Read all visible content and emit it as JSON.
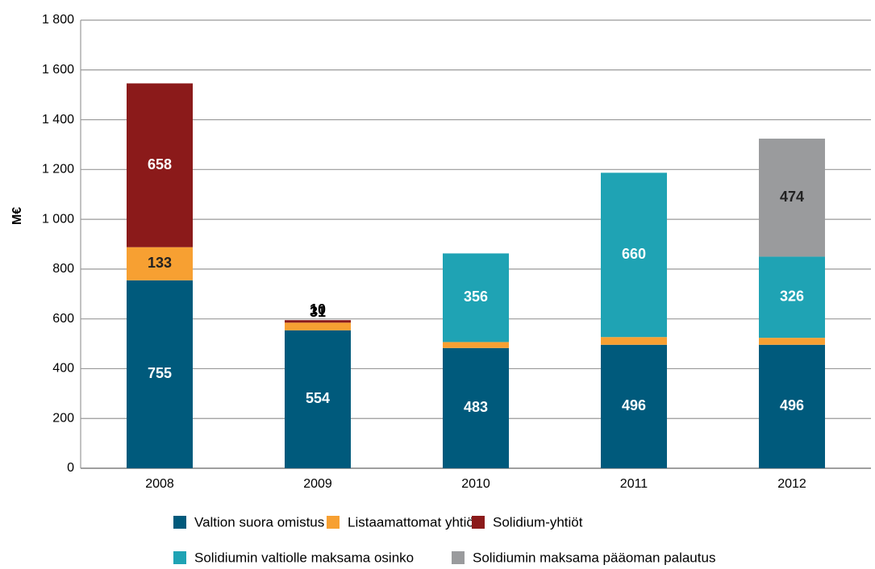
{
  "chart_data": {
    "type": "stacked_bar",
    "y_label": "M€",
    "categories": [
      "2008",
      "2009",
      "2010",
      "2011",
      "2012"
    ],
    "series": [
      {
        "name": "Valtion suora omistus",
        "color": "#005a7c",
        "values": [
          755,
          554,
          483,
          496,
          496
        ]
      },
      {
        "name": "Listaamattomat yhtiöt",
        "color": "#f7a032",
        "values": [
          133,
          31,
          24,
          31,
          28
        ]
      },
      {
        "name": "Solidium-yhtiöt",
        "color": "#8b1a1a",
        "values": [
          658,
          10,
          null,
          null,
          null
        ]
      },
      {
        "name": "Solidiumin valtiolle maksama osinko",
        "color": "#1fa3b4",
        "values": [
          null,
          null,
          356,
          660,
          326
        ]
      },
      {
        "name": "Solidiumin maksama pääoman palautus",
        "color": "#9a9b9d",
        "values": [
          null,
          null,
          null,
          null,
          474
        ]
      }
    ],
    "ylim": [
      0,
      1800
    ],
    "yticks": [
      0,
      200,
      400,
      600,
      800,
      {
        "value": 1000,
        "label": "1 000"
      },
      {
        "value": 1200,
        "label": "1 200"
      },
      {
        "value": 1400,
        "label": "1 400"
      },
      {
        "value": 1600,
        "label": "1 600"
      },
      {
        "value": 1800,
        "label": "1 800"
      }
    ],
    "grid": true
  }
}
